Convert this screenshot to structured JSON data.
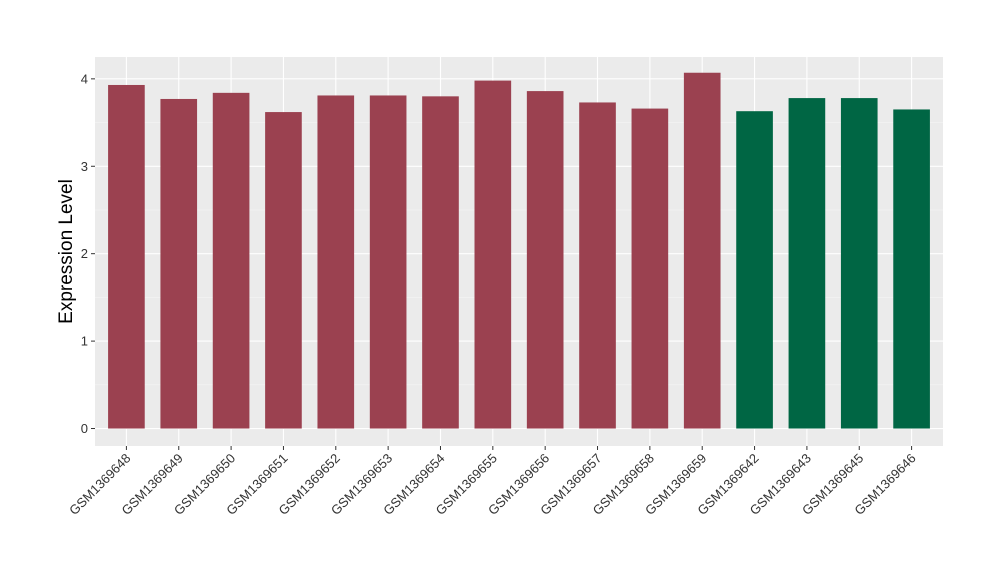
{
  "chart_data": {
    "type": "bar",
    "title": "",
    "xlabel": "",
    "ylabel": "Expression Level",
    "ylim": [
      -0.2,
      4.25
    ],
    "yticks": [
      0,
      1,
      2,
      3,
      4
    ],
    "grid": true,
    "legend": "none",
    "colors": {
      "panel_background": "#EBEBEB",
      "grid_major": "#FFFFFF",
      "grid_minor": "#F5F5F5",
      "group_a": "#9B4150",
      "group_b": "#006644"
    },
    "categories": [
      "GSM1369648",
      "GSM1369649",
      "GSM1369650",
      "GSM1369651",
      "GSM1369652",
      "GSM1369653",
      "GSM1369654",
      "GSM1369655",
      "GSM1369656",
      "GSM1369657",
      "GSM1369658",
      "GSM1369659",
      "GSM1369642",
      "GSM1369643",
      "GSM1369645",
      "GSM1369646"
    ],
    "values": [
      3.93,
      3.77,
      3.84,
      3.62,
      3.81,
      3.81,
      3.8,
      3.98,
      3.86,
      3.73,
      3.66,
      4.07,
      3.63,
      3.78,
      3.78,
      3.65
    ],
    "bar_groups": [
      "a",
      "a",
      "a",
      "a",
      "a",
      "a",
      "a",
      "a",
      "a",
      "a",
      "a",
      "a",
      "b",
      "b",
      "b",
      "b"
    ]
  }
}
